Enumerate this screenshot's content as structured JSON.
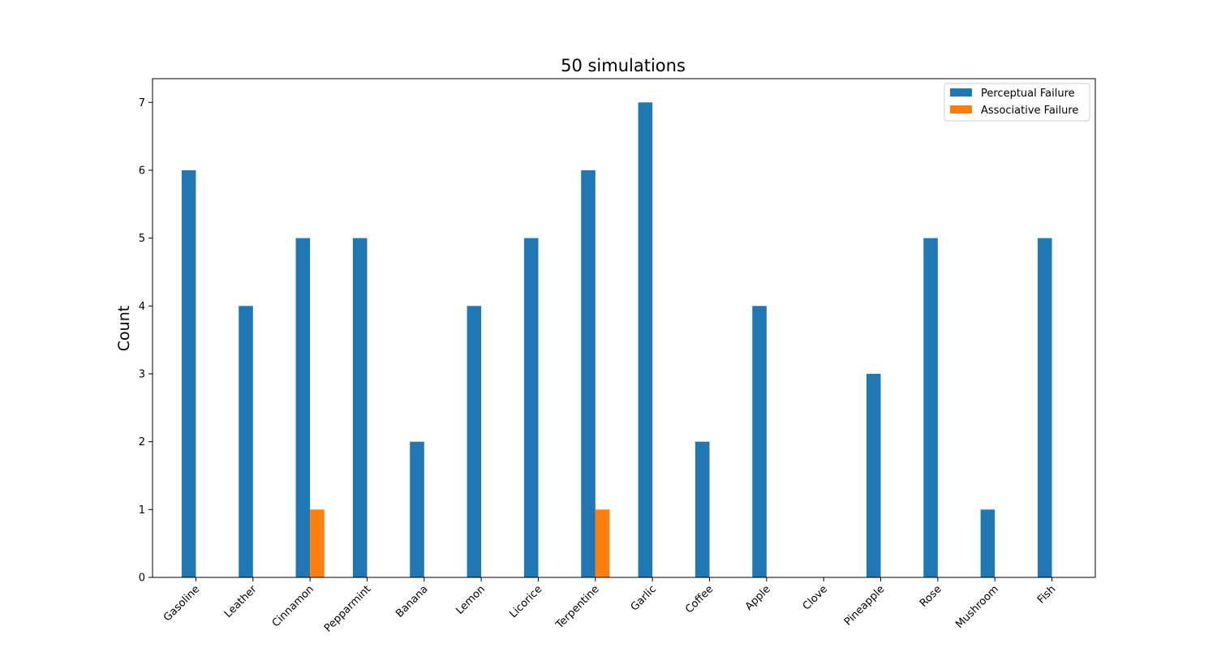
{
  "chart_data": {
    "type": "bar",
    "title": "50 simulations",
    "xlabel": "",
    "ylabel": "Count",
    "categories": [
      "Gasoline",
      "Leather",
      "Cinnamon",
      "Pepparmint",
      "Banana",
      "Lemon",
      "Licorice",
      "Terpentine",
      "Garlic",
      "Coffee",
      "Apple",
      "Clove",
      "Pineapple",
      "Rose",
      "Mushroom",
      "Fish"
    ],
    "series": [
      {
        "name": "Perceptual Failure",
        "color": "#1f77b4",
        "values": [
          6,
          4,
          5,
          5,
          2,
          4,
          5,
          6,
          7,
          2,
          4,
          0,
          3,
          5,
          1,
          5
        ]
      },
      {
        "name": "Associative Failure",
        "color": "#ff7f0e",
        "values": [
          0,
          0,
          1,
          0,
          0,
          0,
          0,
          1,
          0,
          0,
          0,
          0,
          0,
          0,
          0,
          0
        ]
      }
    ],
    "ylim": [
      0,
      7.35
    ],
    "yticks": [
      0,
      1,
      2,
      3,
      4,
      5,
      6,
      7
    ],
    "grid": false,
    "legend_position": "top-right"
  }
}
